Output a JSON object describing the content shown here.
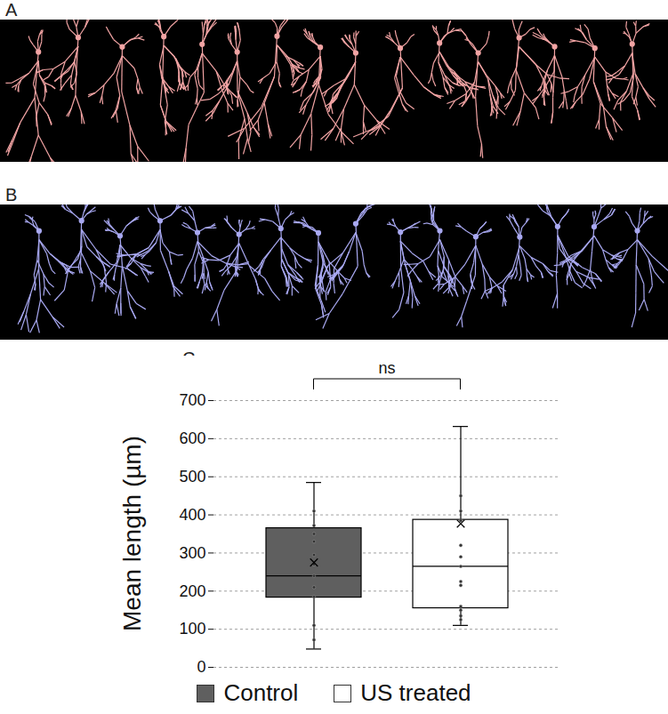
{
  "panels": [
    {
      "label": "A",
      "color": "#f2a4a4",
      "count": 16
    },
    {
      "label": "B",
      "color": "#a9a9f2",
      "count": 16
    }
  ],
  "chart_data": {
    "type": "box",
    "label": "C",
    "ylabel": "Mean length (µm)",
    "ylim": [
      0,
      700
    ],
    "yticks": [
      0,
      100,
      200,
      300,
      400,
      500,
      600,
      700
    ],
    "grid": true,
    "tick_labels": "y",
    "legend": "bottom",
    "annotations": [
      {
        "text": "ns"
      }
    ],
    "series": [
      {
        "name": "Control",
        "color": "#5f5f5f",
        "min": 48,
        "q1": 183,
        "median": 240,
        "q3": 365,
        "max": 485,
        "mean": 275,
        "points": [
          410,
          372,
          350,
          330,
          295,
          270,
          240,
          210,
          185,
          110,
          72
        ]
      },
      {
        "name": "US treated",
        "color": "#ffffff",
        "min": 110,
        "q1": 155,
        "median": 265,
        "q3": 387,
        "max": 632,
        "mean": 377,
        "points": [
          450,
          410,
          385,
          320,
          290,
          265,
          225,
          215,
          160,
          150,
          135,
          125
        ]
      }
    ]
  }
}
